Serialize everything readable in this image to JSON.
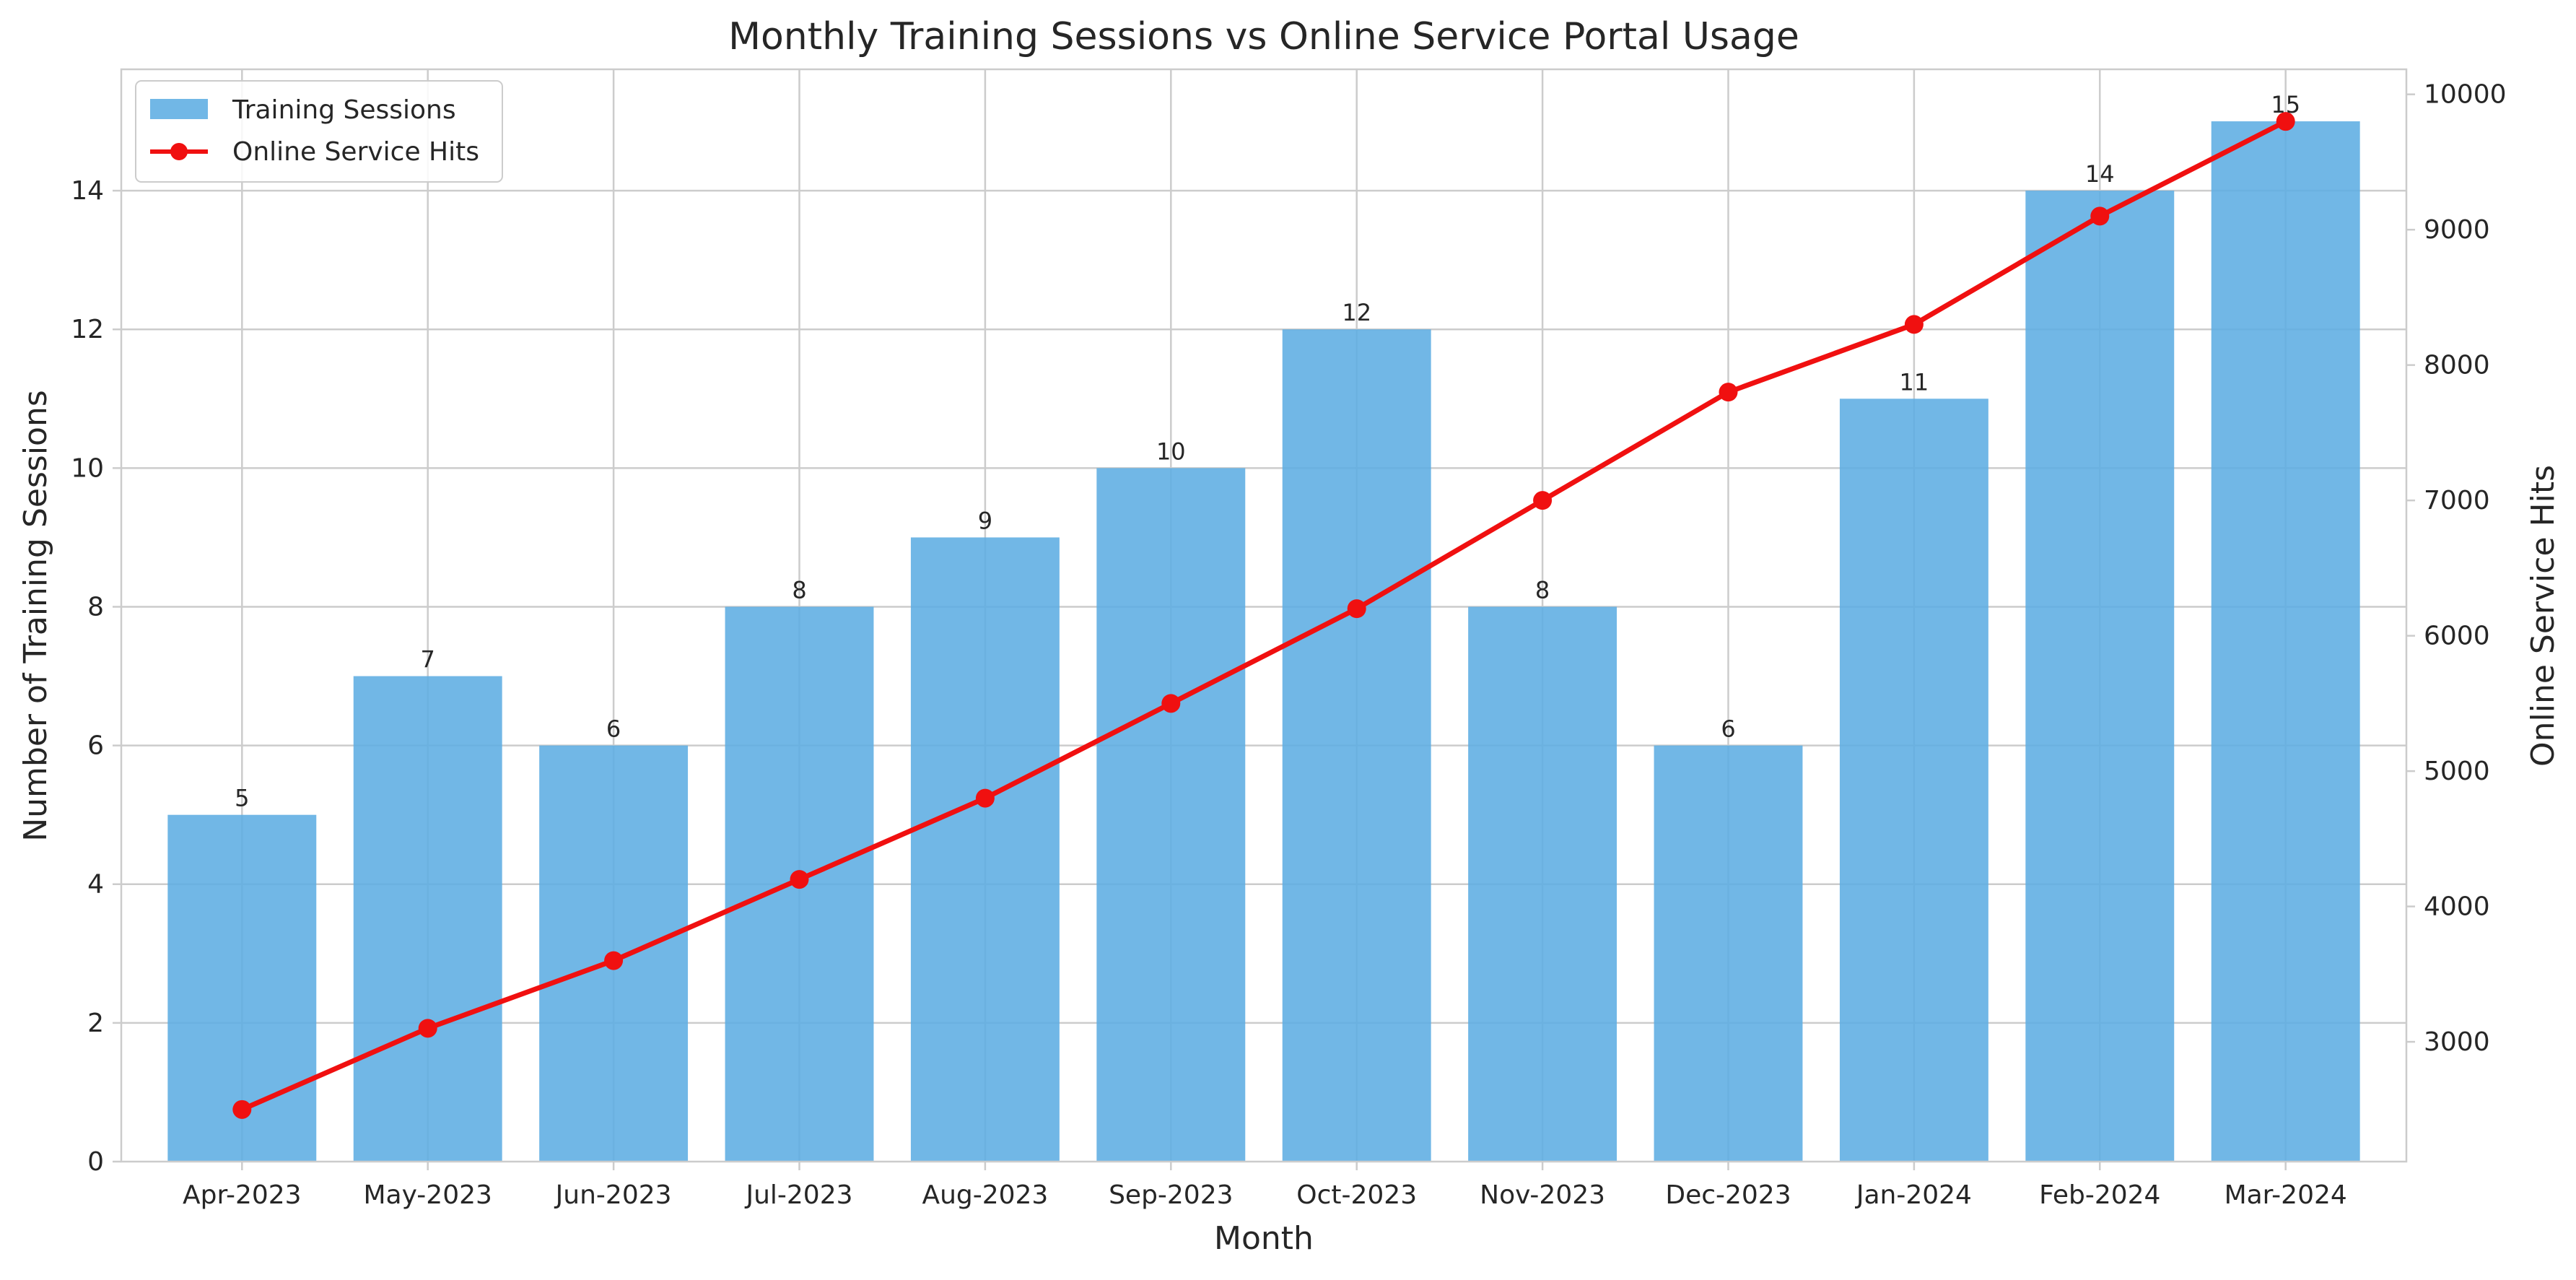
{
  "chart_data": {
    "type": "bar",
    "title": "Monthly Training Sessions vs Online Service Portal Usage",
    "xlabel": "Month",
    "ylabel": "Number of Training Sessions",
    "y2label": "Online Service Hits",
    "categories": [
      "Apr-2023",
      "May-2023",
      "Jun-2023",
      "Jul-2023",
      "Aug-2023",
      "Sep-2023",
      "Oct-2023",
      "Nov-2023",
      "Dec-2023",
      "Jan-2024",
      "Feb-2024",
      "Mar-2024"
    ],
    "series": [
      {
        "name": "Training Sessions",
        "type": "bar",
        "axis": "left",
        "color": "#5DADE2",
        "values": [
          5,
          7,
          6,
          8,
          9,
          10,
          12,
          8,
          6,
          11,
          14,
          15
        ],
        "data_labels": [
          "5",
          "7",
          "6",
          "8",
          "9",
          "10",
          "12",
          "8",
          "6",
          "11",
          "14",
          "15"
        ]
      },
      {
        "name": "Online Service Hits",
        "type": "line",
        "axis": "right",
        "color": "#F01010",
        "marker": "circle",
        "values": [
          2500,
          3100,
          3600,
          4200,
          4800,
          5500,
          6200,
          7000,
          7800,
          8300,
          9100,
          9800
        ]
      }
    ],
    "ylim": [
      0,
      15.75
    ],
    "y2lim": [
      2115,
      10185
    ],
    "yticks": [
      "0",
      "2",
      "4",
      "6",
      "8",
      "10",
      "12",
      "14"
    ],
    "y2ticks": [
      "3000",
      "4000",
      "5000",
      "6000",
      "7000",
      "8000",
      "9000",
      "10000"
    ],
    "grid": true,
    "legend_position": "top-left"
  }
}
